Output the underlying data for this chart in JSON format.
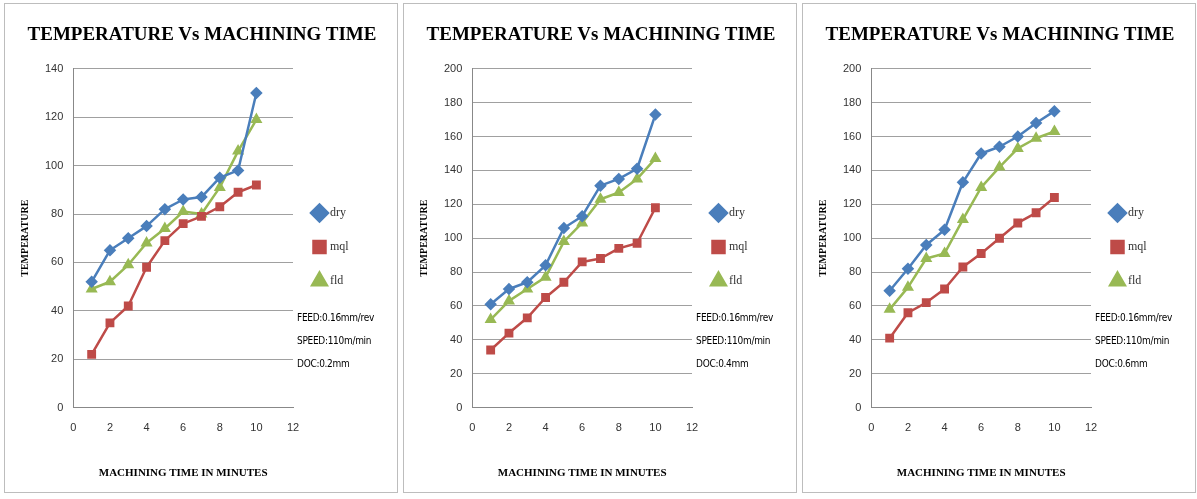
{
  "chart_data": [
    {
      "type": "line",
      "title": "TEMPERATURE Vs MACHINING TIME",
      "xlabel": "MACHINING TIME IN MINUTES",
      "ylabel": "TEMPERATURE",
      "x": [
        1,
        2,
        3,
        4,
        5,
        6,
        7,
        8,
        9,
        10
      ],
      "xlim": [
        0,
        12
      ],
      "xticks": [
        0,
        2,
        4,
        6,
        8,
        10,
        12
      ],
      "ylim": [
        0,
        140
      ],
      "yticks": [
        0,
        20,
        40,
        60,
        80,
        100,
        120,
        140
      ],
      "grid": "y",
      "legend": "right",
      "line_style": "solid",
      "series": [
        {
          "name": "dry",
          "color": "#4a7ebb",
          "marker": "diamond",
          "values": [
            52,
            65,
            70,
            75,
            82,
            86,
            87,
            95,
            98,
            130
          ]
        },
        {
          "name": "mql",
          "color": "#be4b48",
          "marker": "square",
          "values": [
            22,
            35,
            42,
            58,
            69,
            76,
            79,
            83,
            89,
            92
          ]
        },
        {
          "name": "fld",
          "color": "#98b954",
          "marker": "triangle",
          "values": [
            49,
            52,
            59,
            68,
            74,
            81,
            80,
            91,
            106,
            119
          ]
        }
      ],
      "annotations": [
        "FEED:0.16mm/rev",
        "SPEED:110m/min",
        "DOC:0.2mm"
      ]
    },
    {
      "type": "line",
      "title": "TEMPERATURE Vs MACHINING TIME",
      "xlabel": "MACHINING TIME IN MINUTES",
      "ylabel": "TEMPERATURE",
      "x": [
        1,
        2,
        3,
        4,
        5,
        6,
        7,
        8,
        9,
        10
      ],
      "xlim": [
        0,
        12
      ],
      "xticks": [
        0,
        2,
        4,
        6,
        8,
        10,
        12
      ],
      "ylim": [
        0,
        200
      ],
      "yticks": [
        0,
        20,
        40,
        60,
        80,
        100,
        120,
        140,
        160,
        180,
        200
      ],
      "grid": "y",
      "legend": "right",
      "line_style": "solid",
      "series": [
        {
          "name": "dry",
          "color": "#4a7ebb",
          "marker": "diamond",
          "values": [
            61,
            70,
            74,
            84,
            106,
            113,
            131,
            135,
            141,
            173
          ]
        },
        {
          "name": "mql",
          "color": "#be4b48",
          "marker": "square",
          "values": [
            34,
            44,
            53,
            65,
            74,
            86,
            88,
            94,
            97,
            118
          ]
        },
        {
          "name": "fld",
          "color": "#98b954",
          "marker": "triangle",
          "values": [
            52,
            63,
            70,
            77,
            98,
            109,
            123,
            127,
            135,
            147
          ]
        }
      ],
      "annotations": [
        "FEED:0.16mm/rev",
        "SPEED:110m/min",
        "DOC:0.4mm"
      ]
    },
    {
      "type": "line",
      "title": "TEMPERATURE Vs MACHINING TIME",
      "xlabel": "MACHINING TIME IN MINUTES",
      "ylabel": "TEMPERATURE",
      "x": [
        1,
        2,
        3,
        4,
        5,
        6,
        7,
        8,
        9,
        10
      ],
      "xlim": [
        0,
        12
      ],
      "xticks": [
        0,
        2,
        4,
        6,
        8,
        10,
        12
      ],
      "ylim": [
        0,
        200
      ],
      "yticks": [
        0,
        20,
        40,
        60,
        80,
        100,
        120,
        140,
        160,
        180,
        200
      ],
      "grid": "y",
      "legend": "right",
      "line_style": "solid",
      "series": [
        {
          "name": "dry",
          "color": "#4a7ebb",
          "marker": "diamond",
          "values": [
            69,
            82,
            96,
            105,
            133,
            150,
            154,
            160,
            168,
            175
          ]
        },
        {
          "name": "mql",
          "color": "#be4b48",
          "marker": "square",
          "values": [
            41,
            56,
            62,
            70,
            83,
            91,
            100,
            109,
            115,
            124
          ]
        },
        {
          "name": "fld",
          "color": "#98b954",
          "marker": "triangle",
          "values": [
            58,
            71,
            88,
            91,
            111,
            130,
            142,
            153,
            159,
            163
          ]
        }
      ],
      "annotations": [
        "FEED:0.16mm/rev",
        "SPEED:110m/min",
        "DOC:0.6mm"
      ]
    }
  ]
}
